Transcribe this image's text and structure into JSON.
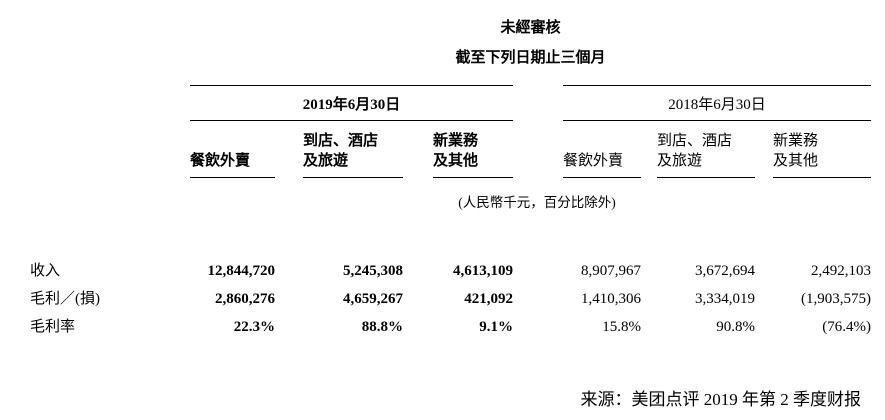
{
  "header": {
    "title": "未經審核",
    "subtitle": "截至下列日期止三個月",
    "period_2019": "2019年6月30日",
    "period_2018": "2018年6月30日"
  },
  "table": {
    "note": "(人民幣千元，百分比除外)",
    "columns_2019": [
      "餐飲外賣",
      "到店、酒店\n及旅遊",
      "新業務\n及其他"
    ],
    "columns_2018": [
      "餐飲外賣",
      "到店、酒店\n及旅遊",
      "新業務\n及其他"
    ],
    "rows": [
      {
        "label": "收入",
        "y2019": [
          "12,844,720",
          "5,245,308",
          "4,613,109"
        ],
        "y2018": [
          "8,907,967",
          "3,672,694",
          "2,492,103"
        ]
      },
      {
        "label": "毛利／(損)",
        "y2019": [
          "2,860,276",
          "4,659,267",
          "421,092"
        ],
        "y2018": [
          "1,410,306",
          "3,334,019",
          "(1,903,575)"
        ]
      },
      {
        "label": "毛利率",
        "y2019": [
          "22.3%",
          "88.8%",
          "9.1%"
        ],
        "y2018": [
          "15.8%",
          "90.8%",
          "(76.4%)"
        ]
      }
    ]
  },
  "footer": {
    "source": "来源：美团点评 2019 年第 2 季度财报"
  },
  "colors": {
    "background": "#ffffff",
    "text": "#000000",
    "rule": "#000000"
  }
}
